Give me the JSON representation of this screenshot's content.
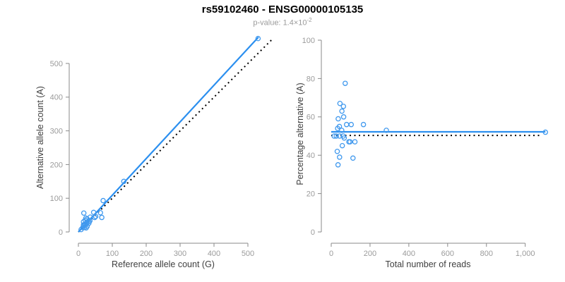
{
  "header": {
    "title": "rs59102460 - ENSG00000105135",
    "subtitle_prefix": "p-value: ",
    "subtitle_value": "1.4×10",
    "subtitle_exponent": "-2"
  },
  "colors": {
    "accent_blue": "#2b8fef",
    "point_blue": "#4099ee",
    "dotted_black": "#000000",
    "axis_gray": "#8a8a8a",
    "tick_text_gray": "#9b9b9b",
    "axis_title_gray": "#3f3f3f"
  },
  "chart_data": [
    {
      "type": "scatter",
      "xlabel": "Reference allele count (G)",
      "ylabel": "Alternative allele count (A)",
      "xlim": [
        0,
        570
      ],
      "ylim": [
        0,
        580
      ],
      "grid": false,
      "legend": null,
      "x_ticks": {
        "values": [
          0,
          100,
          200,
          300,
          400,
          500
        ],
        "labels": [
          "0",
          "100",
          "200",
          "300",
          "400",
          "500"
        ]
      },
      "y_ticks": {
        "values": [
          0,
          100,
          200,
          300,
          400,
          500
        ],
        "labels": [
          "0",
          "100",
          "200",
          "300",
          "400",
          "500"
        ]
      },
      "points": [
        [
          16,
          56
        ],
        [
          15,
          30
        ],
        [
          22,
          41
        ],
        [
          20,
          35
        ],
        [
          26,
          38
        ],
        [
          15,
          21
        ],
        [
          35,
          44
        ],
        [
          45,
          58
        ],
        [
          73,
          93
        ],
        [
          19,
          23
        ],
        [
          15,
          18
        ],
        [
          25,
          29
        ],
        [
          134,
          150
        ],
        [
          8,
          7
        ],
        [
          13,
          13
        ],
        [
          21,
          22
        ],
        [
          31,
          31
        ],
        [
          34,
          33
        ],
        [
          48,
          43
        ],
        [
          51,
          46
        ],
        [
          65,
          57
        ],
        [
          31,
          26
        ],
        [
          18,
          13
        ],
        [
          26,
          17
        ],
        [
          69,
          43
        ],
        [
          23,
          12
        ],
        [
          530,
          574
        ]
      ],
      "lines": [
        {
          "name": "identity-line",
          "style": "dotted",
          "color": "#000000",
          "from": [
            0,
            0
          ],
          "to": [
            570,
            570
          ]
        },
        {
          "name": "fit-line",
          "style": "solid",
          "color": "#2b8fef",
          "from": [
            0,
            0
          ],
          "to": [
            531,
            578
          ]
        }
      ]
    },
    {
      "type": "scatter",
      "xlabel": "Total number of reads",
      "ylabel": "Percentage alternative (A)",
      "xlim": [
        0,
        1110
      ],
      "ylim": [
        0,
        100
      ],
      "grid": false,
      "legend": null,
      "x_ticks": {
        "values": [
          0,
          200,
          400,
          600,
          800,
          1000
        ],
        "labels": [
          "0",
          "200",
          "400",
          "600",
          "800",
          "1,000"
        ]
      },
      "y_ticks": {
        "values": [
          0,
          20,
          40,
          60,
          80,
          100
        ],
        "labels": [
          "0",
          "20",
          "40",
          "60",
          "80",
          "100"
        ]
      },
      "points": [
        [
          72,
          77.5
        ],
        [
          45,
          67
        ],
        [
          63,
          65.5
        ],
        [
          55,
          63
        ],
        [
          64,
          60
        ],
        [
          36,
          59
        ],
        [
          79,
          56
        ],
        [
          103,
          56
        ],
        [
          166,
          56
        ],
        [
          42,
          55
        ],
        [
          33,
          54
        ],
        [
          54,
          53
        ],
        [
          284,
          53
        ],
        [
          15,
          50
        ],
        [
          26,
          50
        ],
        [
          43,
          50
        ],
        [
          62,
          50
        ],
        [
          67,
          49
        ],
        [
          91,
          47
        ],
        [
          97,
          47
        ],
        [
          122,
          47
        ],
        [
          57,
          45
        ],
        [
          31,
          42
        ],
        [
          43,
          39
        ],
        [
          112,
          38.5
        ],
        [
          35,
          35
        ],
        [
          1104,
          52
        ]
      ],
      "lines": [
        {
          "name": "null-line",
          "style": "dotted",
          "color": "#000000",
          "from": [
            0,
            50.3
          ],
          "to": [
            1085,
            50.3
          ]
        },
        {
          "name": "fit-line",
          "style": "solid",
          "color": "#2b8fef",
          "from": [
            0,
            52.2
          ],
          "to": [
            1104,
            52.2
          ]
        }
      ]
    }
  ]
}
